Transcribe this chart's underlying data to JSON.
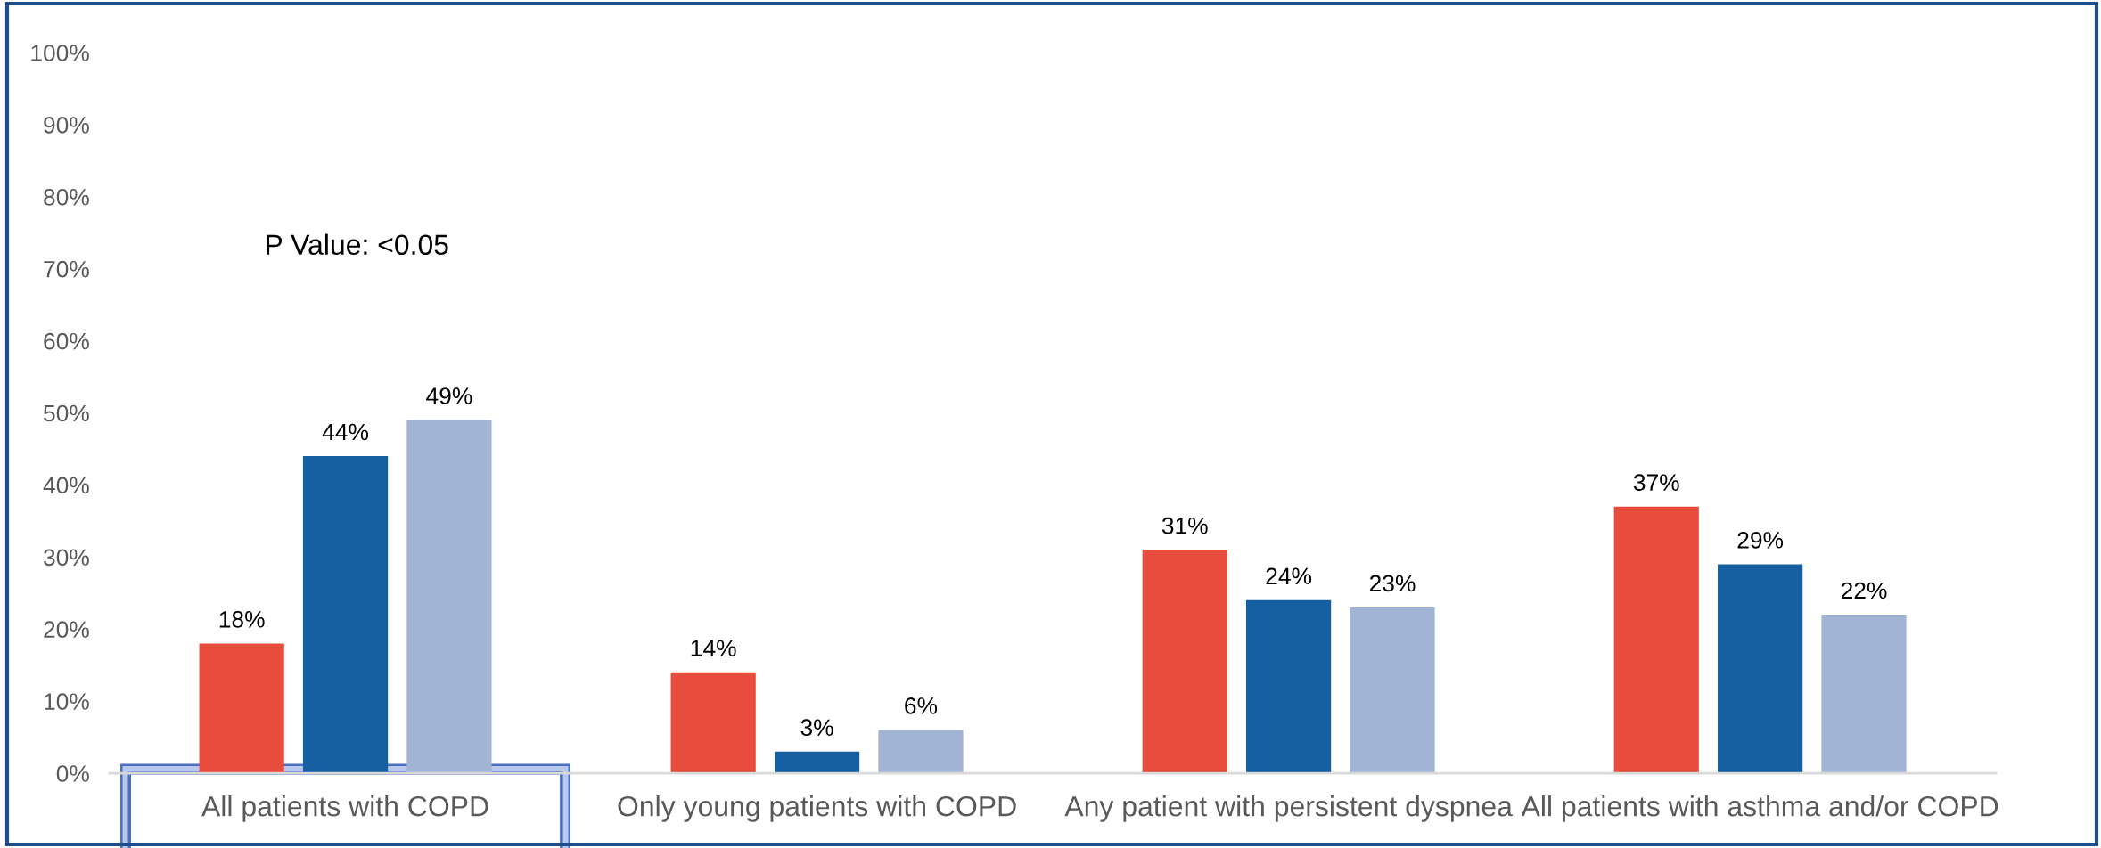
{
  "chart_data": {
    "type": "bar",
    "categories": [
      "All patients with COPD",
      "Only young patients with COPD",
      "Any patient with persistent dyspnea",
      "All patients with asthma and/or COPD"
    ],
    "series": [
      {
        "color": "#e84c3d",
        "values": [
          18,
          14,
          31,
          37
        ],
        "value_labels": [
          "18%",
          "14%",
          "31%",
          "37%"
        ]
      },
      {
        "color": "#1660a1",
        "values": [
          44,
          3,
          24,
          29
        ],
        "value_labels": [
          "44%",
          "3%",
          "24%",
          "29%"
        ]
      },
      {
        "color": "#a1b4d4",
        "values": [
          49,
          6,
          23,
          22
        ],
        "value_labels": [
          "49%",
          "6%",
          "23%",
          "22%"
        ]
      }
    ],
    "ylim": [
      0,
      100
    ],
    "yticks": [
      {
        "value": 0,
        "label": "0%"
      },
      {
        "value": 10,
        "label": "10%"
      },
      {
        "value": 20,
        "label": "20%"
      },
      {
        "value": 30,
        "label": "30%"
      },
      {
        "value": 40,
        "label": "40%"
      },
      {
        "value": 50,
        "label": "50%"
      },
      {
        "value": 60,
        "label": "60%"
      },
      {
        "value": 70,
        "label": "70%"
      },
      {
        "value": 80,
        "label": "80%"
      },
      {
        "value": 90,
        "label": "90%"
      },
      {
        "value": 100,
        "label": "100%"
      }
    ],
    "annotations": [
      "P Value: <0.05"
    ]
  }
}
